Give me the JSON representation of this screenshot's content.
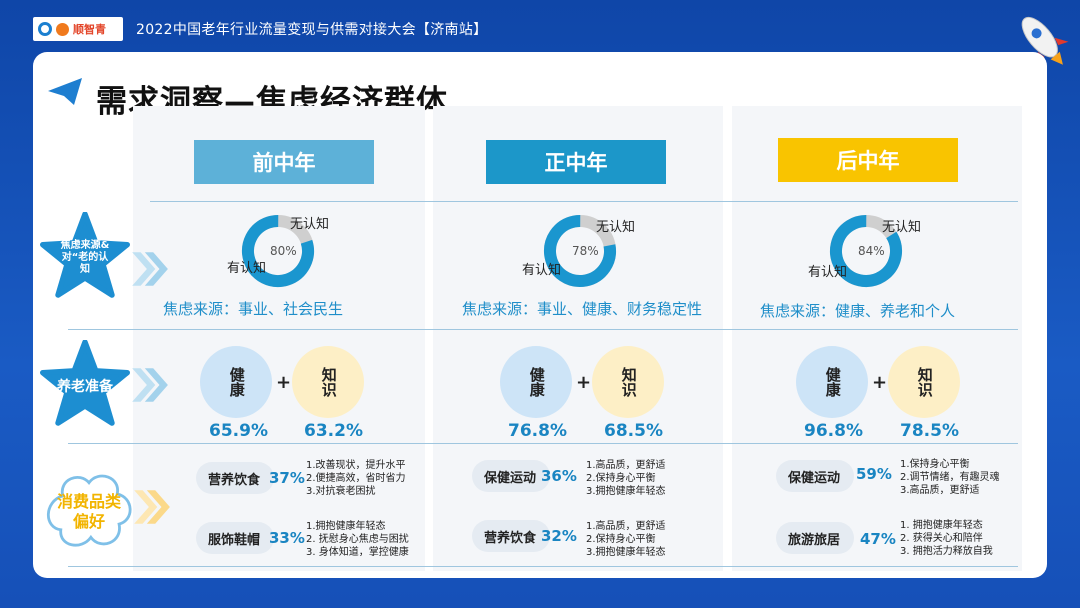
{
  "header": {
    "logo_text": "顺智青",
    "event_title": "2022中国老年行业流量变现与供需对接大会【济南站】"
  },
  "page_title": "需求洞察—焦虑经济群体",
  "row_labels": {
    "row1": "焦虑来源&对“老的认知",
    "row2": "养老准备",
    "row3": "消费品类偏好"
  },
  "colors": {
    "col1": "#5db1d8",
    "col2": "#1c97c9",
    "col3": "#f9c400",
    "donut_blue": "#1a96cf",
    "donut_grey": "#cfcfcf",
    "health_circle": "#cde4f7",
    "knowledge_circle": "#fdefc6"
  },
  "columns": [
    {
      "header": "前中年",
      "aware_pct": 80,
      "aware_center": "80%",
      "aware_label": "有认知",
      "unaware_label": "无认知",
      "source": "焦虑来源：事业、社会民生",
      "health_label": "健康",
      "knowledge_label": "知识",
      "health_pct": "65.9%",
      "knowledge_pct": "63.2%",
      "prefs": [
        {
          "name": "营养饮食",
          "pct": "37%",
          "notes": [
            "1.改善现状，提升水平",
            "2.便捷高效，省时省力",
            "3.对抗衰老困扰"
          ]
        },
        {
          "name": "服饰鞋帽",
          "pct": "33%",
          "notes": [
            "1.拥抱健康年轻态",
            "2. 抚慰身心焦虑与困扰",
            "3. 身体知道，掌控健康"
          ]
        }
      ]
    },
    {
      "header": "正中年",
      "aware_pct": 78,
      "aware_center": "78%",
      "aware_label": "有认知",
      "unaware_label": "无认知",
      "source": "焦虑来源：事业、健康、财务稳定性",
      "health_label": "健康",
      "knowledge_label": "知识",
      "health_pct": "76.8%",
      "knowledge_pct": "68.5%",
      "prefs": [
        {
          "name": "保健运动",
          "pct": "36%",
          "notes": [
            "1.高品质，更舒适",
            "2.保持身心平衡",
            "3.拥抱健康年轻态"
          ]
        },
        {
          "name": "营养饮食",
          "pct": "32%",
          "notes": [
            "1.高品质，更舒适",
            "2.保持身心平衡",
            "3.拥抱健康年轻态"
          ]
        }
      ]
    },
    {
      "header": "后中年",
      "aware_pct": 84,
      "aware_center": "84%",
      "aware_label": "有认知",
      "unaware_label": "无认知",
      "source": "焦虑来源：健康、养老和个人",
      "health_label": "健康",
      "knowledge_label": "知识",
      "health_pct": "96.8%",
      "knowledge_pct": "78.5%",
      "prefs": [
        {
          "name": "保健运动",
          "pct": "59%",
          "notes": [
            "1.保持身心平衡",
            "2.调节情绪，有趣灵魂",
            "3.高品质，更舒适"
          ]
        },
        {
          "name": "旅游旅居",
          "pct": "47%",
          "notes": [
            "1. 拥抱健康年轻态",
            "2. 获得关心和陪伴",
            "3. 拥抱活力释放自我"
          ]
        }
      ]
    }
  ]
}
